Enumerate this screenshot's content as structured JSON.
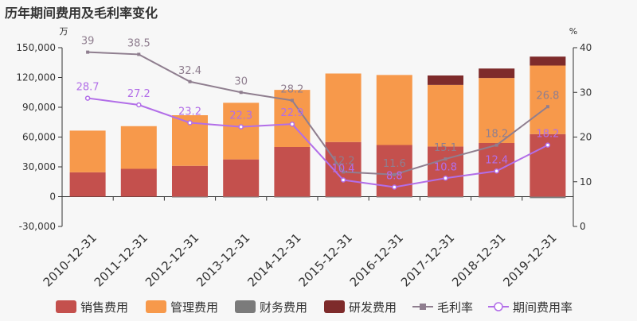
{
  "chart_data": {
    "type": "bar",
    "title": "历年期间费用及毛利率变化",
    "ylabel_left": "万",
    "ylabel_right": "%",
    "categories": [
      "2010-12-31",
      "2011-12-31",
      "2012-12-31",
      "2013-12-31",
      "2014-12-31",
      "2015-12-31",
      "2016-12-31",
      "2017-12-31",
      "2018-12-31",
      "2019-12-31"
    ],
    "left_axis": {
      "min": -30000,
      "max": 150000,
      "ticks": [
        -30000,
        0,
        30000,
        60000,
        90000,
        120000,
        150000
      ],
      "tick_labels": [
        "-30,000",
        "0",
        "30,000",
        "60,000",
        "90,000",
        "120,000",
        "150,000"
      ]
    },
    "right_axis": {
      "min": 0,
      "max": 40,
      "ticks": [
        0,
        10,
        20,
        30,
        40
      ],
      "tick_labels": [
        "0",
        "10",
        "20",
        "30",
        "40"
      ]
    },
    "bar_series": [
      {
        "name": "销售费用",
        "color": "#c4504d",
        "values": [
          24500,
          28000,
          31000,
          37500,
          50000,
          55000,
          52000,
          50500,
          54000,
          63000
        ]
      },
      {
        "name": "管理费用",
        "color": "#f7994b",
        "values": [
          42000,
          43000,
          51000,
          57000,
          57500,
          69000,
          70500,
          62000,
          65500,
          69000
        ]
      },
      {
        "name": "财务费用",
        "color": "#7b7b7b",
        "values": [
          0,
          0,
          -800,
          -500,
          -300,
          -500,
          -300,
          -800,
          -800,
          -1500
        ]
      },
      {
        "name": "研发费用",
        "color": "#7e2b2b",
        "values": [
          0,
          0,
          0,
          0,
          0,
          0,
          0,
          9500,
          9500,
          9000
        ]
      }
    ],
    "line_series": [
      {
        "name": "毛利率",
        "color": "#8f7e8f",
        "values": [
          39,
          38.5,
          32.4,
          30,
          28.2,
          12.2,
          11.6,
          15.1,
          18.2,
          26.8
        ],
        "labels": [
          "39",
          "38.5",
          "32.4",
          "30",
          "28.2",
          "12.2",
          "11.6",
          "15.1",
          "18.2",
          "26.8"
        ]
      },
      {
        "name": "期间费用率",
        "color": "#b26ee8",
        "values": [
          28.7,
          27.2,
          23.2,
          22.3,
          22.9,
          10.4,
          8.8,
          10.8,
          12.4,
          18.2
        ],
        "labels": [
          "28.7",
          "27.2",
          "23.2",
          "22.3",
          "22.9",
          "10.4",
          "8.8",
          "10.8",
          "12.4",
          "18.2"
        ]
      }
    ],
    "legend": [
      "销售费用",
      "管理费用",
      "财务费用",
      "研发费用",
      "毛利率",
      "期间费用率"
    ],
    "legend_position": "bottom",
    "grid": false
  }
}
